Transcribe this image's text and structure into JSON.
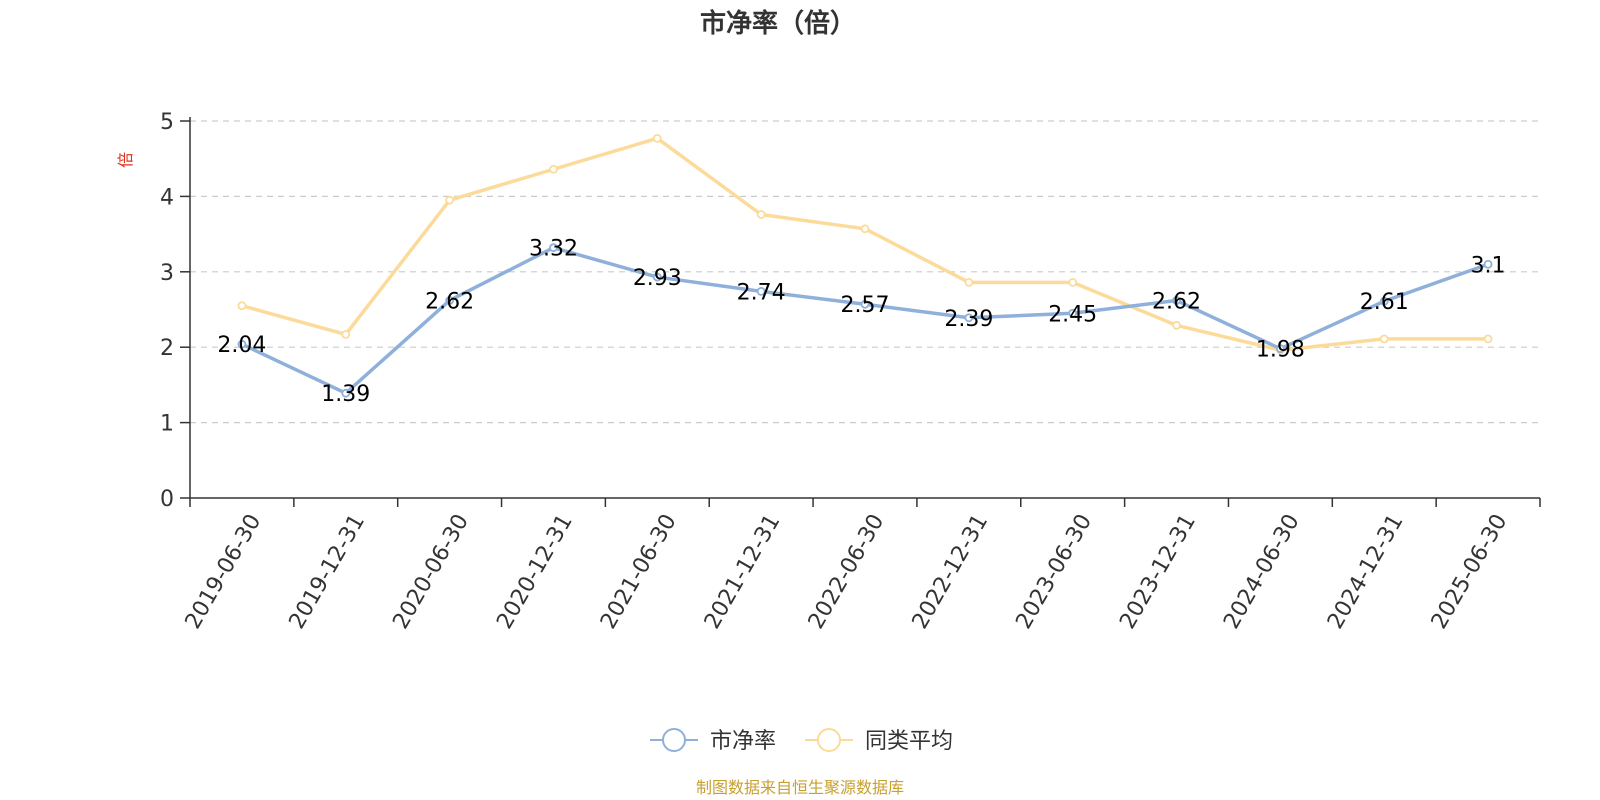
{
  "chart_data": {
    "type": "line",
    "title": "市净率（倍）",
    "ylabel": "倍",
    "xlabel": "",
    "ylim": [
      0,
      5
    ],
    "yticks": [
      0,
      1,
      2,
      3,
      4,
      5
    ],
    "grid": true,
    "legend_position": "bottom-center",
    "categories": [
      "2019-06-30",
      "2019-12-31",
      "2020-06-30",
      "2020-12-31",
      "2021-06-30",
      "2021-12-31",
      "2022-06-30",
      "2022-12-31",
      "2023-06-30",
      "2023-12-31",
      "2024-06-30",
      "2024-12-31",
      "2025-06-30"
    ],
    "series": [
      {
        "name": "市净率",
        "color": "#8eb0da",
        "values": [
          2.04,
          1.39,
          2.62,
          3.32,
          2.93,
          2.74,
          2.57,
          2.39,
          2.45,
          2.62,
          1.98,
          2.61,
          3.1
        ],
        "data_labels": [
          "2.04",
          "1.39",
          "2.62",
          "3.32",
          "2.93",
          "2.74",
          "2.57",
          "2.39",
          "2.45",
          "2.62",
          "1.98",
          "2.61",
          "3.1"
        ]
      },
      {
        "name": "同类平均",
        "color": "#fcdb9a",
        "values": [
          2.55,
          2.17,
          3.95,
          4.36,
          4.77,
          3.76,
          3.57,
          2.86,
          2.86,
          2.29,
          1.96,
          2.11,
          2.11
        ]
      }
    ],
    "unit_color": "#e0301e",
    "source_color": "#c8a030"
  },
  "footer": {
    "source": "制图数据来自恒生聚源数据库"
  }
}
